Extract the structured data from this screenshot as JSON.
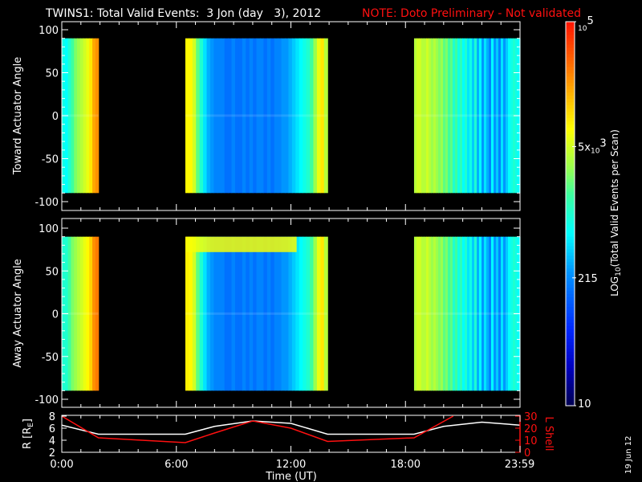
{
  "header": {
    "title": "TWINS1: Total Valid Events:  3 Jon (day   3), 2012",
    "note": "NOTE: Doto Preliminary - Not validated"
  },
  "colors": {
    "background": "#000000",
    "axis": "#ffffff",
    "note": "#ff1010",
    "lshell": "#ff1010",
    "radius": "#ffffff"
  },
  "chart_data": [
    {
      "type": "heatmap",
      "name": "toward",
      "ylabel": "Toward Actuator Angle",
      "ylim": [
        -110,
        110
      ],
      "yticks": [
        100,
        50,
        0,
        -50,
        -100
      ],
      "xlim_hours": [
        0,
        24
      ],
      "angle_range": [
        -90,
        90
      ],
      "value_units": "log10 counts",
      "blocks": [
        {
          "start": 0.0,
          "end": 1.92,
          "values": [
            2.9,
            2.8,
            3.0,
            3.2,
            3.4,
            3.5,
            3.6,
            3.7,
            3.8,
            4.0,
            4.3,
            4.4
          ]
        },
        {
          "start": 6.47,
          "end": 13.92,
          "values": [
            3.9,
            3.9,
            3.7,
            3.3,
            3.0,
            2.7,
            2.5,
            2.4,
            2.3,
            2.3,
            2.3,
            2.2,
            2.2,
            2.3,
            2.2,
            2.2,
            2.3,
            2.2,
            2.3,
            2.2,
            2.3,
            2.3,
            2.2,
            2.3,
            2.2,
            2.3,
            2.3,
            2.4,
            2.4,
            2.5,
            2.6,
            2.7,
            2.8,
            2.9,
            3.0,
            3.2,
            3.5,
            3.8,
            4.0,
            3.6
          ]
        },
        {
          "start": 18.45,
          "end": 24.0,
          "values": [
            3.6,
            3.7,
            3.7,
            3.6,
            3.6,
            3.7,
            3.6,
            3.5,
            3.6,
            3.5,
            3.4,
            3.5,
            3.3,
            3.4,
            3.2,
            3.3,
            3.0,
            3.2,
            2.9,
            3.1,
            2.8,
            3.0,
            2.7,
            2.9,
            2.6,
            3.0,
            2.5,
            2.8,
            2.4,
            2.7,
            2.5,
            2.3,
            2.8,
            2.4,
            2.6,
            2.3,
            2.7,
            2.4,
            2.6,
            2.8,
            2.9,
            3.0,
            2.9,
            2.8
          ]
        }
      ],
      "bands": []
    },
    {
      "type": "heatmap",
      "name": "away",
      "ylabel": "Away Actuator Angle",
      "ylim": [
        -110,
        110
      ],
      "yticks": [
        100,
        50,
        0,
        -50,
        -100
      ],
      "xlim_hours": [
        0,
        24
      ],
      "angle_range": [
        -90,
        90
      ],
      "value_units": "log10 counts",
      "blocks": [
        {
          "start": 0.0,
          "end": 1.92,
          "values": [
            3.0,
            3.0,
            3.2,
            3.4,
            3.5,
            3.6,
            3.7,
            3.8,
            3.9,
            4.1,
            4.4,
            4.5
          ]
        },
        {
          "start": 6.47,
          "end": 13.92,
          "values": [
            3.95,
            3.9,
            3.7,
            3.3,
            3.0,
            2.7,
            2.5,
            2.4,
            2.3,
            2.3,
            2.3,
            2.2,
            2.2,
            2.3,
            2.2,
            2.2,
            2.3,
            2.2,
            2.3,
            2.2,
            2.3,
            2.3,
            2.2,
            2.3,
            2.2,
            2.3,
            2.3,
            2.4,
            2.4,
            2.5,
            2.6,
            2.7,
            2.8,
            2.9,
            3.0,
            3.2,
            3.5,
            3.8,
            4.0,
            3.6
          ]
        },
        {
          "start": 18.45,
          "end": 24.0,
          "values": [
            3.6,
            3.7,
            3.7,
            3.6,
            3.6,
            3.7,
            3.6,
            3.5,
            3.6,
            3.5,
            3.4,
            3.5,
            3.3,
            3.4,
            3.2,
            3.3,
            3.0,
            3.2,
            2.9,
            3.1,
            2.8,
            3.0,
            2.7,
            2.9,
            2.6,
            3.0,
            2.5,
            2.8,
            2.4,
            2.7,
            2.5,
            2.3,
            2.8,
            2.4,
            2.6,
            2.3,
            2.7,
            2.4,
            2.6,
            2.8,
            2.9,
            3.0,
            2.9,
            2.8
          ]
        }
      ],
      "bands": [
        {
          "start": 6.5,
          "end": 12.3,
          "angle_min": 72,
          "angle_max": 90,
          "value": 3.85
        }
      ]
    },
    {
      "type": "line",
      "name": "orbit",
      "ylabel_left": {
        "pre": "R [R",
        "sub": "E",
        "post": "]"
      },
      "ylabel_right": "L Shell",
      "ylim_left": [
        2,
        8
      ],
      "yticks_left": [
        8,
        6,
        4,
        2
      ],
      "ylim_right": [
        0,
        30
      ],
      "yticks_right": [
        30,
        20,
        10,
        0
      ],
      "xlabel": "Time (UT)",
      "xticks": [
        {
          "h": 0,
          "label": "0:00"
        },
        {
          "h": 6,
          "label": "6:00"
        },
        {
          "h": 12,
          "label": "12:00"
        },
        {
          "h": 18,
          "label": "18:00"
        },
        {
          "h": 23.98,
          "label": "23:59"
        }
      ],
      "series": [
        {
          "name": "R",
          "axis": "left",
          "points": [
            [
              0,
              6.5
            ],
            [
              1.92,
              5
            ],
            [
              6.47,
              5
            ],
            [
              8,
              6.3
            ],
            [
              10,
              7.2
            ],
            [
              12,
              6.8
            ],
            [
              13.92,
              5
            ],
            [
              18.45,
              5
            ],
            [
              20,
              6.3
            ],
            [
              22,
              7
            ],
            [
              24,
              6.5
            ]
          ]
        },
        {
          "name": "L Shell",
          "axis": "right",
          "points": [
            [
              0,
              30
            ],
            [
              1.92,
              12
            ],
            [
              6.47,
              8
            ],
            [
              8,
              16
            ],
            [
              10,
              26
            ],
            [
              12,
              20
            ],
            [
              13.92,
              9
            ],
            [
              18.45,
              12
            ],
            [
              20.5,
              30
            ]
          ]
        }
      ]
    }
  ],
  "colorbar": {
    "range_log10": [
      1,
      5
    ],
    "ticks": [
      {
        "value": 5,
        "base": "10",
        "exp": "5",
        "pre": ""
      },
      {
        "value": 3.699,
        "base": "10",
        "exp": "3",
        "pre": "5x"
      },
      {
        "value": 2.332,
        "plain": "215"
      },
      {
        "value": 1,
        "plain": "10"
      }
    ],
    "label_pre": "LOG",
    "label_sub": "10",
    "label_post": "(Total Valid Events per Scan)"
  },
  "footer": {
    "date_stamp": "19 Jun 12"
  }
}
